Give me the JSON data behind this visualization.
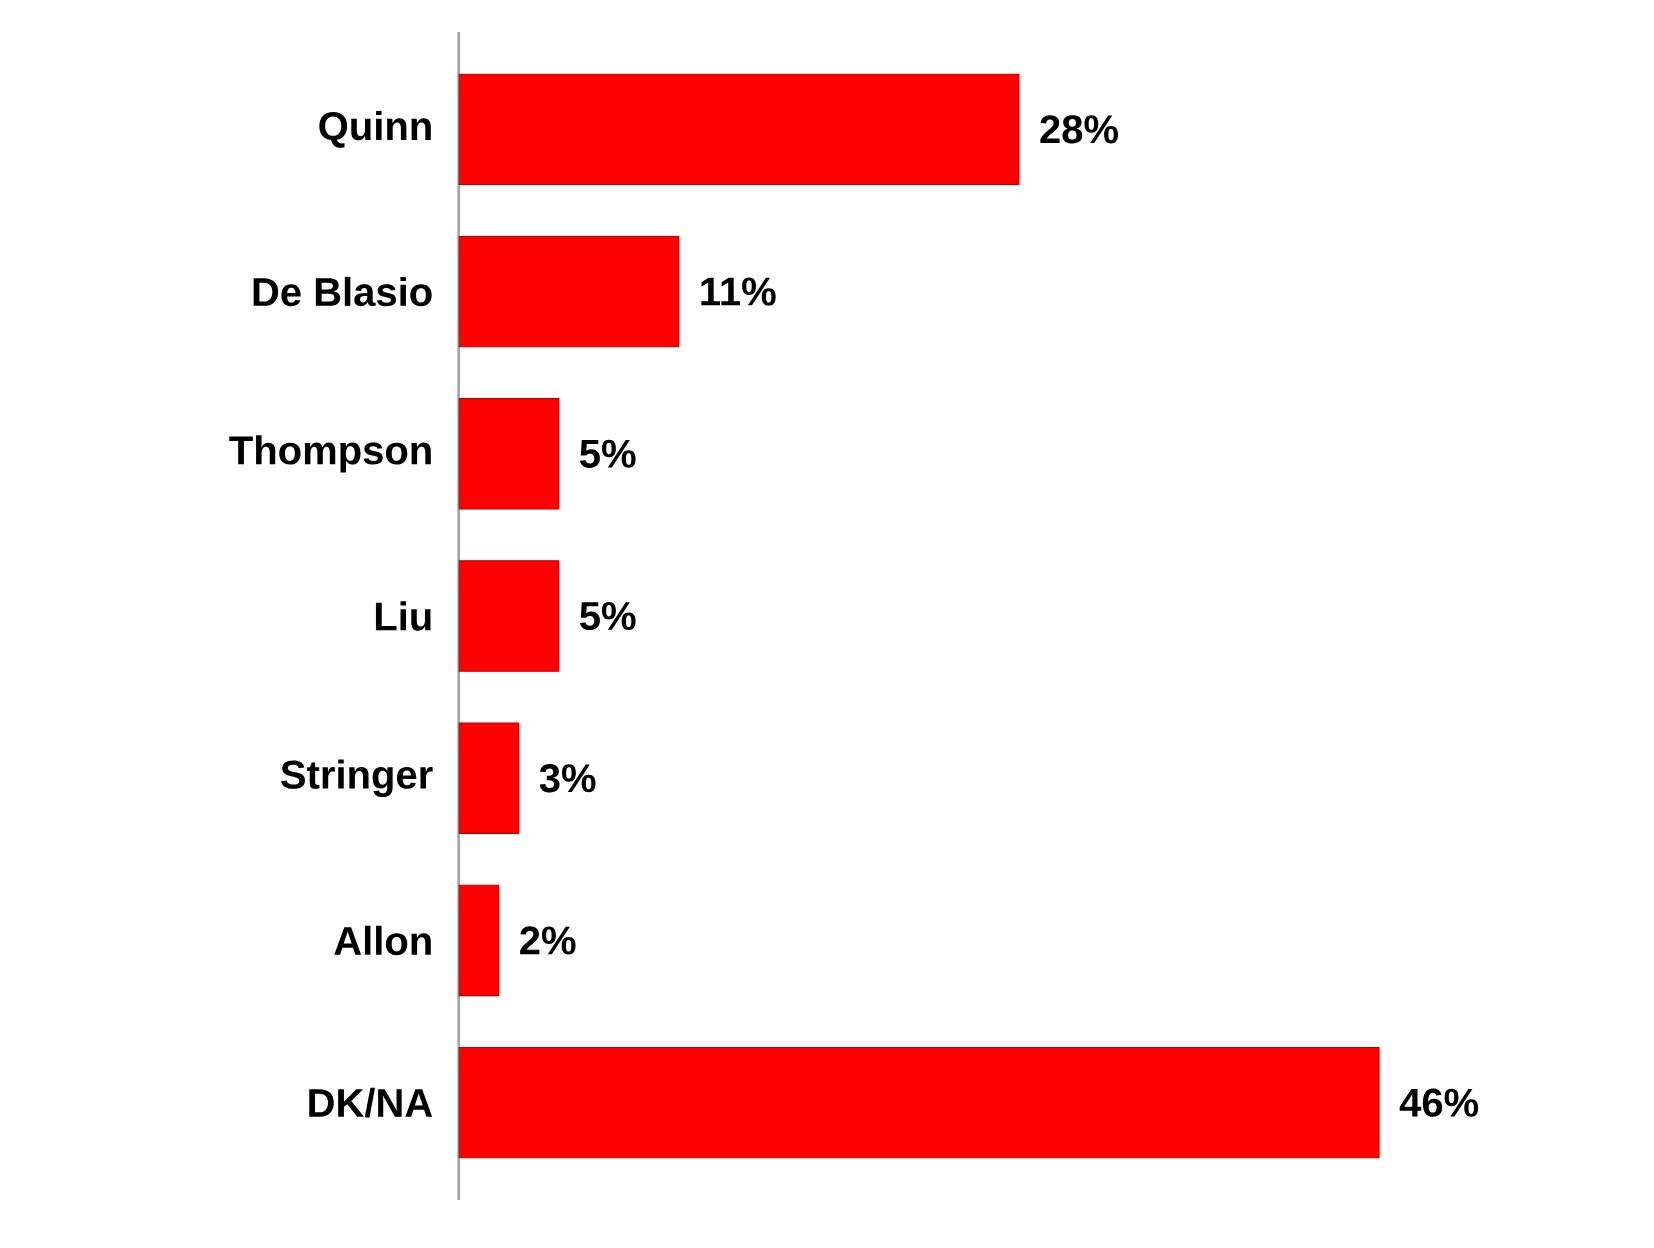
{
  "chart_data": {
    "type": "bar",
    "orientation": "horizontal",
    "categories": [
      "Quinn",
      "De Blasio",
      "Thompson",
      "Liu",
      "Stringer",
      "Allon",
      "DK/NA"
    ],
    "values": [
      28,
      11,
      5,
      5,
      3,
      2,
      46
    ],
    "value_labels": [
      "28%",
      "11%",
      "5%",
      "5%",
      "3%",
      "2%",
      "46%"
    ],
    "color": "#ff0000"
  }
}
